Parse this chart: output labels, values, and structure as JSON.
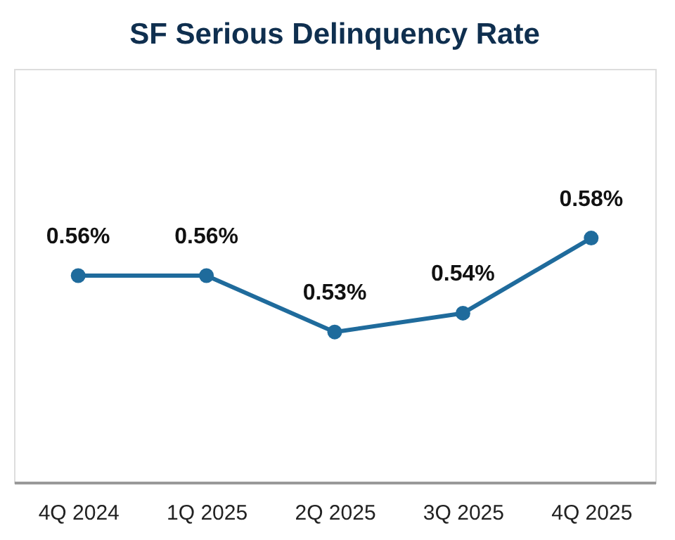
{
  "chart_data": {
    "type": "line",
    "title": "SF Serious Delinquency Rate",
    "categories": [
      "4Q 2024",
      "1Q 2025",
      "2Q 2025",
      "3Q 2025",
      "4Q 2025"
    ],
    "series": [
      {
        "color": "#1f6b9c",
        "values": [
          0.56,
          0.56,
          0.53,
          0.54,
          0.58
        ],
        "value_labels": [
          "0.56%",
          "0.56%",
          "0.53%",
          "0.54%",
          "0.58%"
        ]
      }
    ],
    "marker": "circle",
    "line_style": "solid",
    "grid": false
  }
}
